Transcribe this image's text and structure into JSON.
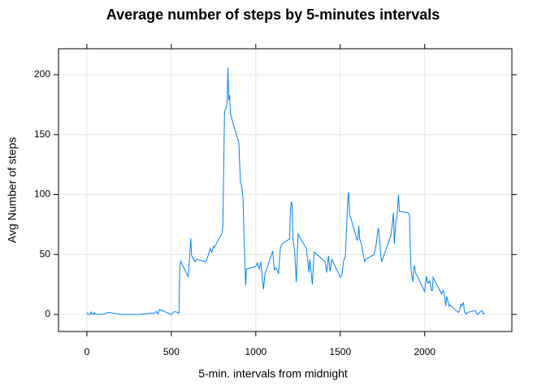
{
  "chart_data": {
    "type": "line",
    "title": "Average number of steps by 5-minutes intervals",
    "xlabel": "5-min. intervals from midnight",
    "ylabel": "Avg Number of steps",
    "x": [
      0,
      5,
      10,
      15,
      20,
      25,
      30,
      35,
      40,
      45,
      50,
      55,
      100,
      130,
      200,
      300,
      400,
      410,
      420,
      430,
      440,
      450,
      500,
      515,
      530,
      545,
      550,
      555,
      600,
      615,
      620,
      640,
      650,
      700,
      705,
      720,
      730,
      740,
      750,
      755,
      800,
      805,
      815,
      825,
      830,
      835,
      840,
      845,
      850,
      900,
      905,
      910,
      915,
      920,
      925,
      930,
      935,
      940,
      945,
      1000,
      1010,
      1020,
      1030,
      1040,
      1045,
      1055,
      1100,
      1110,
      1120,
      1135,
      1145,
      1155,
      1200,
      1205,
      1210,
      1215,
      1220,
      1230,
      1240,
      1250,
      1300,
      1305,
      1315,
      1320,
      1335,
      1345,
      1355,
      1410,
      1420,
      1430,
      1440,
      1450,
      1500,
      1510,
      1520,
      1530,
      1540,
      1545,
      1550,
      1555,
      1600,
      1605,
      1610,
      1615,
      1625,
      1635,
      1645,
      1650,
      1700,
      1710,
      1725,
      1730,
      1740,
      1745,
      1800,
      1810,
      1815,
      1820,
      1830,
      1835,
      1845,
      1850,
      1900,
      1910,
      1915,
      1920,
      1930,
      1935,
      1940,
      1945,
      2000,
      2010,
      2015,
      2020,
      2030,
      2040,
      2045,
      2050,
      2100,
      2110,
      2115,
      2125,
      2130,
      2145,
      2150,
      2200,
      2205,
      2215,
      2220,
      2225,
      2230,
      2235,
      2245,
      2250,
      2300,
      2310,
      2325,
      2330,
      2340,
      2345,
      2355
    ],
    "series": [
      {
        "name": "steps",
        "color": "#0080ff",
        "values": [
          1.7,
          0.3,
          0.1,
          0.2,
          0.1,
          2.1,
          0.5,
          0.9,
          0,
          1.5,
          0.3,
          0.1,
          0.3,
          1.8,
          0,
          0,
          1.2,
          2.6,
          0.3,
          4.1,
          3.5,
          3,
          0,
          2.3,
          2.1,
          1.1,
          39.5,
          44.5,
          31.5,
          63.5,
          49,
          44,
          46,
          44,
          44,
          50,
          55,
          52,
          57,
          56,
          68,
          74,
          170,
          172,
          177,
          206,
          179,
          183,
          167,
          143,
          124,
          109,
          108,
          103,
          96,
          66,
          45,
          24,
          38,
          40,
          43,
          38,
          44,
          28,
          21,
          34,
          53,
          37,
          39,
          34,
          55,
          59,
          63,
          87,
          94,
          92,
          63,
          53,
          27,
          67,
          55,
          48,
          35,
          46,
          25,
          52,
          51,
          44,
          35,
          49,
          36,
          46,
          31,
          33,
          45,
          48,
          80,
          97,
          102,
          84,
          62,
          64,
          74,
          63,
          59,
          51,
          44,
          46,
          50,
          56,
          72,
          67,
          49,
          44,
          66,
          78,
          85,
          59,
          79,
          81,
          100,
          86,
          85,
          83,
          54,
          36,
          27,
          38,
          41,
          35,
          19,
          32,
          28,
          26,
          28,
          20,
          20,
          31,
          17,
          20,
          18,
          7,
          15,
          7,
          8,
          1.6,
          3,
          8.5,
          7,
          8.7,
          9.8,
          2.2,
          0.3,
          1.6,
          3.3,
          0,
          1.6,
          2.6,
          3.3,
          0.6,
          1.1
        ]
      }
    ],
    "xlim": [
      -168,
      2516
    ],
    "ylim": [
      -14.2,
      221.7
    ],
    "xticks": [
      0,
      500,
      1000,
      1500,
      2000
    ],
    "yticks": [
      0,
      50,
      100,
      150,
      200
    ],
    "grid": true
  }
}
